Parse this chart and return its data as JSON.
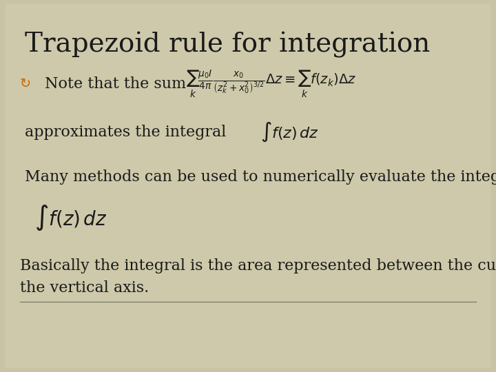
{
  "title": "Trapezoid rule for integration",
  "bg_color": "#c8c3a5",
  "title_fontsize": 28,
  "body_fontsize": 16,
  "text_color": "#1a1a1a",
  "bullet_color": "#cc6600",
  "bullet_symbol": "↻",
  "line1_text": "Note that the sum",
  "line1_math": "$\\sum_{k} \\frac{\\mu_0 I}{4\\pi} \\frac{x_0}{\\left(z_k^{2}+x_0^{2}\\right)^{3/2}} \\Delta z \\equiv \\sum_{k} f(z_k)\\Delta z$",
  "line2_text": "approximates the integral",
  "line2_math": "$\\int f(z)\\,dz$",
  "line3_text": "Many methods can be used to numerically evaluate the integral",
  "line4_math": "$\\int f(z)\\,dz$",
  "line5_text1": "Basically the integral is the area represented between the curve and",
  "line5_text2": "the vertical axis."
}
